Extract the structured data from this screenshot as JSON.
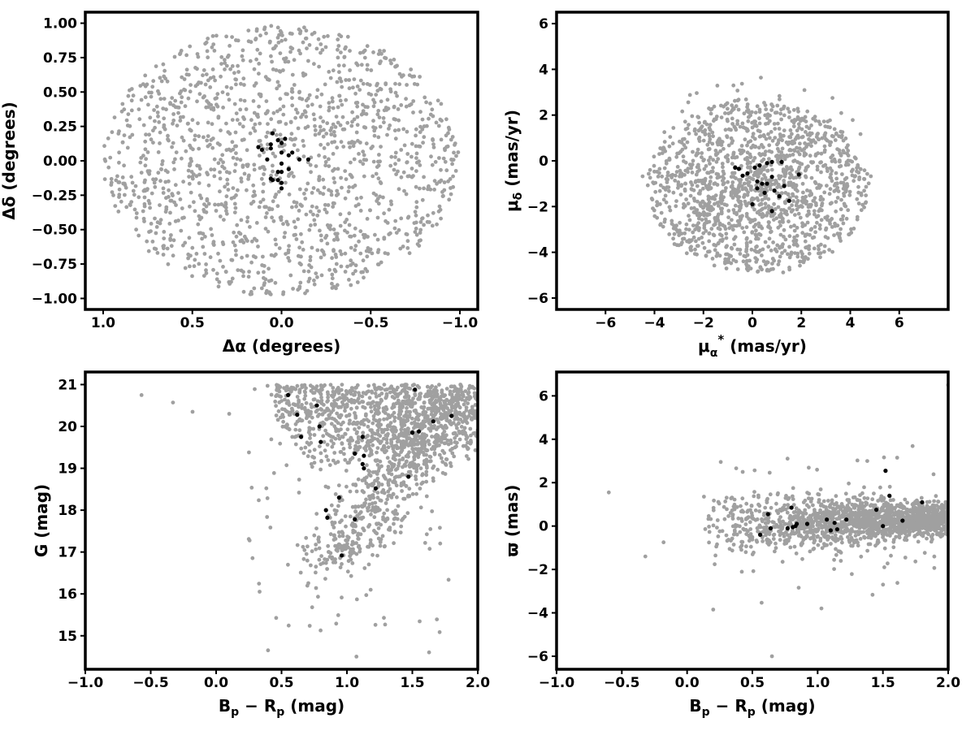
{
  "chart_data": [
    {
      "type": "scatter",
      "panel": "top-left",
      "title": "",
      "xlabel": "Δα (degrees)",
      "ylabel": "Δδ (degrees)",
      "xlim": [
        1.1,
        -1.1
      ],
      "ylim": [
        -1.08,
        1.08
      ],
      "x_inverted": true,
      "xticks": [
        1.0,
        0.5,
        0.0,
        -0.5,
        -1.0
      ],
      "xtick_labels": [
        "1.0",
        "0.5",
        "0.0",
        "−0.5",
        "−1.0"
      ],
      "yticks": [
        -1.0,
        -0.75,
        -0.5,
        -0.25,
        0.0,
        0.25,
        0.5,
        0.75,
        1.0
      ],
      "ytick_labels": [
        "−1.00",
        "−0.75",
        "−0.50",
        "−0.25",
        "0.00",
        "0.25",
        "0.50",
        "0.75",
        "1.00"
      ],
      "grid": false,
      "legend": "none",
      "series": [
        {
          "color": "#a0a0a0",
          "marker_size": 2.4,
          "count_approx": 1500,
          "distribution": {
            "shape": "disk",
            "center": [
              0.0,
              0.0
            ],
            "radius": 1.0
          }
        },
        {
          "color": "#000000",
          "marker_size": 2.6,
          "points": [
            [
              0.05,
              0.2
            ],
            [
              0.06,
              0.12
            ],
            [
              0.06,
              0.09
            ],
            [
              0.13,
              0.1
            ],
            [
              0.11,
              0.08
            ],
            [
              0.02,
              0.15
            ],
            [
              0.0,
              0.13
            ],
            [
              0.0,
              0.06
            ],
            [
              -0.04,
              0.04
            ],
            [
              0.08,
              0.01
            ],
            [
              -0.06,
              0.06
            ],
            [
              -0.1,
              0.01
            ],
            [
              -0.15,
              0.01
            ],
            [
              -0.02,
              0.16
            ],
            [
              0.0,
              -0.02
            ],
            [
              -0.04,
              -0.06
            ],
            [
              0.0,
              -0.08
            ],
            [
              0.02,
              -0.08
            ],
            [
              0.05,
              -0.14
            ],
            [
              0.02,
              -0.14
            ],
            [
              0.0,
              -0.16
            ],
            [
              0.0,
              -0.2
            ],
            [
              0.06,
              -0.13
            ]
          ]
        }
      ]
    },
    {
      "type": "scatter",
      "panel": "top-right",
      "title": "",
      "xlabel": "μα* (mas/yr)",
      "xlabel_parts": {
        "base": "μ",
        "sub": "α",
        "sup": "*",
        "rest": " (mas/yr)"
      },
      "ylabel": "μδ (mas/yr)",
      "ylabel_parts": {
        "base": "μ",
        "sub": "δ",
        "rest": " (mas/yr)"
      },
      "xlim": [
        -8,
        8
      ],
      "ylim": [
        -6.5,
        6.5
      ],
      "xticks": [
        -6,
        -4,
        -2,
        0,
        2,
        4,
        6
      ],
      "xtick_labels": [
        "−6",
        "−4",
        "−2",
        "0",
        "2",
        "4",
        "6"
      ],
      "yticks": [
        -6,
        -4,
        -2,
        0,
        2,
        4,
        6
      ],
      "ytick_labels": [
        "−6",
        "−4",
        "−2",
        "0",
        "2",
        "4",
        "6"
      ],
      "grid": false,
      "legend": "none",
      "series": [
        {
          "color": "#a0a0a0",
          "marker_size": 2.4,
          "count_approx": 1500,
          "distribution": {
            "shape": "disk",
            "center": [
              0.2,
              -1.1
            ],
            "radius": 3.8,
            "x_range": [
              -4.8,
              4.9
            ],
            "y_range": [
              -5.0,
              4.8
            ]
          }
        },
        {
          "color": "#000000",
          "marker_size": 2.6,
          "points": [
            [
              -0.7,
              -0.3
            ],
            [
              -0.55,
              -0.35
            ],
            [
              -0.4,
              -0.65
            ],
            [
              -0.2,
              -0.55
            ],
            [
              0.1,
              -0.3
            ],
            [
              0.3,
              -0.2
            ],
            [
              0.6,
              -0.1
            ],
            [
              0.8,
              -0.05
            ],
            [
              1.2,
              -0.05
            ],
            [
              0.2,
              -0.9
            ],
            [
              0.4,
              -1.0
            ],
            [
              0.6,
              -1.0
            ],
            [
              0.8,
              -0.7
            ],
            [
              0.2,
              -1.2
            ],
            [
              0.5,
              -1.4
            ],
            [
              0.9,
              -1.3
            ],
            [
              1.3,
              -1.1
            ],
            [
              1.1,
              -1.55
            ],
            [
              1.5,
              -1.75
            ],
            [
              1.9,
              -0.6
            ],
            [
              0.0,
              -1.9
            ],
            [
              0.8,
              -2.2
            ]
          ]
        }
      ]
    },
    {
      "type": "scatter",
      "panel": "bottom-left",
      "title": "",
      "xlabel": "Bp − Rp (mag)",
      "xlabel_parts": {
        "a": "B",
        "a_sub": "p",
        "minus": "−",
        "b": "R",
        "b_sub": "p",
        "rest": " (mag)"
      },
      "ylabel": "G (mag)",
      "xlim": [
        -1.0,
        2.0
      ],
      "ylim": [
        14.2,
        21.3
      ],
      "y_inverted": false,
      "xticks": [
        -1.0,
        -0.5,
        0.0,
        0.5,
        1.0,
        1.5,
        2.0
      ],
      "xtick_labels": [
        "−1.0",
        "−0.5",
        "0.0",
        "0.5",
        "1.0",
        "1.5",
        "2.0"
      ],
      "yticks": [
        15,
        16,
        17,
        18,
        19,
        20,
        21
      ],
      "ytick_labels": [
        "15",
        "16",
        "17",
        "18",
        "19",
        "20",
        "21"
      ],
      "grid": false,
      "legend": "none",
      "series": [
        {
          "color": "#a0a0a0",
          "marker_size": 2.4,
          "count_approx": 1700,
          "distribution": {
            "shape": "cmd-wedge",
            "x_range": [
              0.1,
              2.0
            ],
            "y_range": [
              14.5,
              21.0
            ]
          }
        },
        {
          "color": "#000000",
          "marker_size": 2.6,
          "points": [
            [
              0.55,
              20.75
            ],
            [
              0.62,
              20.28
            ],
            [
              0.65,
              19.75
            ],
            [
              0.77,
              20.5
            ],
            [
              0.79,
              20.0
            ],
            [
              0.8,
              19.63
            ],
            [
              0.84,
              18.0
            ],
            [
              0.85,
              17.82
            ],
            [
              0.94,
              18.3
            ],
            [
              0.96,
              16.92
            ],
            [
              1.06,
              17.78
            ],
            [
              1.06,
              19.35
            ],
            [
              1.12,
              19.75
            ],
            [
              1.12,
              19.1
            ],
            [
              1.13,
              19.3
            ],
            [
              1.13,
              19.0
            ],
            [
              1.22,
              18.52
            ],
            [
              1.47,
              18.8
            ],
            [
              1.5,
              19.85
            ],
            [
              1.52,
              20.88
            ],
            [
              1.55,
              19.88
            ],
            [
              1.66,
              20.12
            ],
            [
              1.8,
              20.25
            ]
          ]
        }
      ]
    },
    {
      "type": "scatter",
      "panel": "bottom-right",
      "title": "",
      "xlabel": "Bp − Rp (mag)",
      "xlabel_parts": {
        "a": "B",
        "a_sub": "p",
        "minus": "−",
        "b": "R",
        "b_sub": "p",
        "rest": " (mag)"
      },
      "ylabel": "ϖ (mas)",
      "xlim": [
        -1.0,
        2.0
      ],
      "ylim": [
        -6.6,
        7.1
      ],
      "xticks": [
        -1.0,
        -0.5,
        0.0,
        0.5,
        1.0,
        1.5,
        2.0
      ],
      "xtick_labels": [
        "−1.0",
        "−0.5",
        "0.0",
        "0.5",
        "1.0",
        "1.5",
        "2.0"
      ],
      "yticks": [
        -6,
        -4,
        -2,
        0,
        2,
        4,
        6
      ],
      "ytick_labels": [
        "−6",
        "−4",
        "−2",
        "0",
        "2",
        "4",
        "6"
      ],
      "grid": false,
      "legend": "none",
      "series": [
        {
          "color": "#a0a0a0",
          "marker_size": 2.4,
          "count_approx": 1700,
          "distribution": {
            "shape": "band",
            "x_range": [
              0.1,
              2.0
            ],
            "y_center": 0.2
          }
        },
        {
          "color": "#000000",
          "marker_size": 2.6,
          "points": [
            [
              0.62,
              0.55
            ],
            [
              0.56,
              -0.4
            ],
            [
              0.64,
              -0.1
            ],
            [
              0.77,
              -0.1
            ],
            [
              0.8,
              0.85
            ],
            [
              0.84,
              0.1
            ],
            [
              0.92,
              0.1
            ],
            [
              1.07,
              0.3
            ],
            [
              1.1,
              -0.2
            ],
            [
              1.13,
              0.15
            ],
            [
              1.15,
              -0.15
            ],
            [
              1.22,
              0.3
            ],
            [
              1.45,
              0.75
            ],
            [
              1.5,
              0.0
            ],
            [
              1.52,
              2.55
            ],
            [
              1.55,
              1.4
            ],
            [
              1.65,
              0.25
            ],
            [
              1.8,
              1.1
            ],
            [
              0.81,
              -0.05
            ],
            [
              0.83,
              0.0
            ]
          ]
        }
      ]
    }
  ]
}
